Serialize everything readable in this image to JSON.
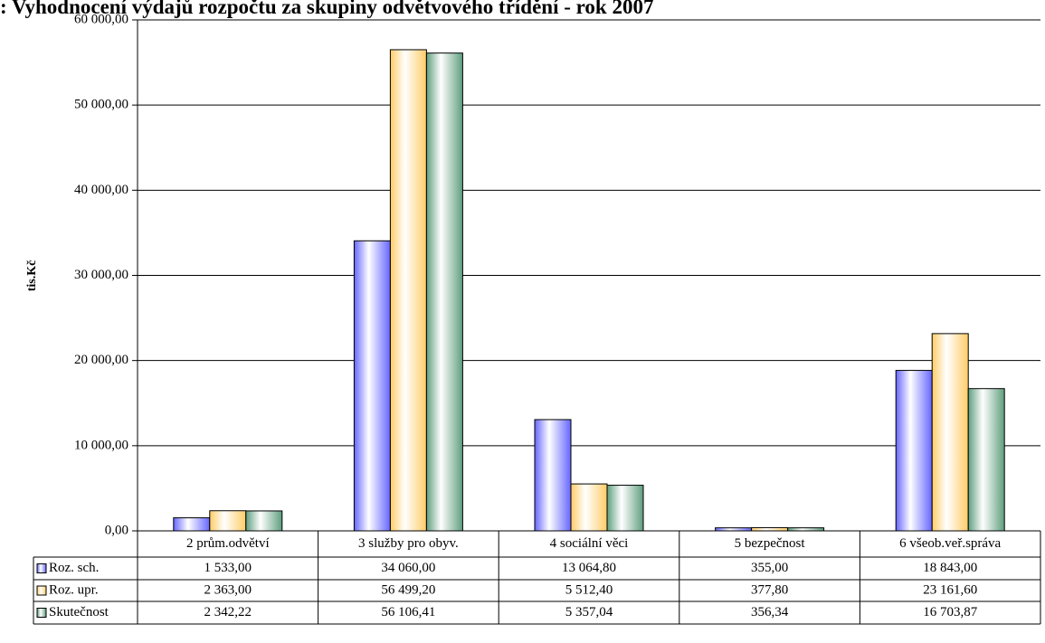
{
  "chart_data": {
    "type": "bar",
    "title": ": Vyhodnocení výdajů rozpočtu za skupiny odvětvového třídění - rok 2007",
    "y_label": "tis.Kč",
    "categories": [
      "2 prům.odvětví",
      "3 služby pro obyv.",
      "4 sociální věci",
      "5 bezpečnost",
      "6 všeob.veř.správa"
    ],
    "series": [
      {
        "name": "Roz. sch.",
        "color": "#6666ff",
        "values": [
          1533.0,
          34060.0,
          13064.8,
          355.0,
          18843.0
        ],
        "value_labels": [
          "1 533,00",
          "34 060,00",
          "13 064,80",
          "355,00",
          "18 843,00"
        ]
      },
      {
        "name": "Roz. upr.",
        "color": "#ffcc66",
        "values": [
          2363.0,
          56499.2,
          5512.4,
          377.8,
          23161.6
        ],
        "value_labels": [
          "2 363,00",
          "56 499,20",
          "5 512,40",
          "377,80",
          "23 161,60"
        ]
      },
      {
        "name": "Skutečnost",
        "color": "#5e9e7e",
        "values": [
          2342.22,
          56106.41,
          5357.04,
          356.34,
          16703.87
        ],
        "value_labels": [
          "2 342,22",
          "56 106,41",
          "5 357,04",
          "356,34",
          "16 703,87"
        ]
      }
    ],
    "ylim": [
      0,
      60000
    ],
    "yticks": [
      {
        "value": 0,
        "label": "0,00"
      },
      {
        "value": 10000,
        "label": "10 000,00"
      },
      {
        "value": 20000,
        "label": "20 000,00"
      },
      {
        "value": 30000,
        "label": "30 000,00"
      },
      {
        "value": 40000,
        "label": "40 000,00"
      },
      {
        "value": 50000,
        "label": "50 000,00"
      },
      {
        "value": 60000,
        "label": "60 000,00"
      }
    ],
    "grid": true
  }
}
